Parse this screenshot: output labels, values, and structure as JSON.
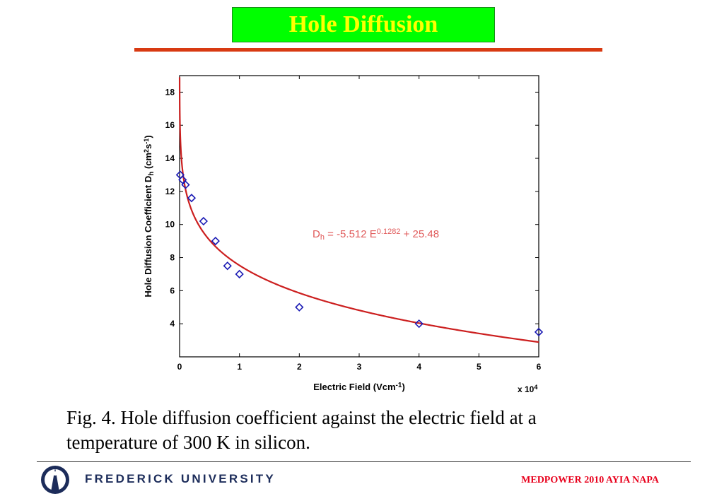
{
  "slide": {
    "title": "Hole Diffusion",
    "caption_line1": "Fig. 4.  Hole diffusion coefficient against the electric field at a",
    "caption_line2": "temperature of 300 K in silicon.",
    "footer_left": "FREDERICK UNIVERSITY",
    "footer_right": "MEDPOWER 2010 AYIA NAPA",
    "logo_icon": "frederick-university-logo-icon",
    "colors": {
      "title_bg": "#00ff00",
      "title_text": "#ffff00",
      "rule": "#d83a12",
      "fit_line": "#cc1f1f",
      "markers": "#1a1ab4",
      "equation": "#e05a5a",
      "footer_right": "#e8001c",
      "footer_left": "#1c2c5a"
    }
  },
  "chart_data": {
    "type": "scatter",
    "xlabel": "Electric Field (Vcm",
    "xlabel_sup": "-1",
    "xlabel_close": ")",
    "x_multiplier_label": "x 10",
    "x_multiplier_sup": "4",
    "ylabel": "Hole Diffusion Coefficient D",
    "ylabel_sub": "h",
    "ylabel_units": " (cm",
    "ylabel_sup1": "2",
    "ylabel_s": "s",
    "ylabel_sup2": "-1",
    "ylabel_close": ")",
    "xlim": [
      0,
      6
    ],
    "ylim": [
      2,
      19
    ],
    "xticks": [
      0,
      1,
      2,
      3,
      4,
      5,
      6
    ],
    "xtick_labels": [
      "0",
      "1",
      "2",
      "3",
      "4",
      "5",
      "6"
    ],
    "yticks": [
      4,
      6,
      8,
      10,
      12,
      14,
      16,
      18
    ],
    "ytick_labels": [
      "4",
      "6",
      "8",
      "10",
      "12",
      "14",
      "16",
      "18"
    ],
    "grid": false,
    "series": [
      {
        "marker": "diamond",
        "points": [
          {
            "x": 0.01,
            "y": 13.0
          },
          {
            "x": 0.05,
            "y": 12.7
          },
          {
            "x": 0.1,
            "y": 12.4
          },
          {
            "x": 0.2,
            "y": 11.6
          },
          {
            "x": 0.4,
            "y": 10.2
          },
          {
            "x": 0.6,
            "y": 9.0
          },
          {
            "x": 0.8,
            "y": 7.5
          },
          {
            "x": 1.0,
            "y": 7.0
          },
          {
            "x": 2.0,
            "y": 5.0
          },
          {
            "x": 4.0,
            "y": 4.0
          },
          {
            "x": 6.0,
            "y": 3.5
          }
        ]
      }
    ],
    "fit": {
      "a": -5.512,
      "b": 0.1282,
      "c": 25.48,
      "x_scale": 10000,
      "label_main": "D",
      "label_sub": "h",
      "label_mid": " = -5.512 E",
      "label_sup": "0.1282",
      "label_end": " + 25.48"
    }
  }
}
